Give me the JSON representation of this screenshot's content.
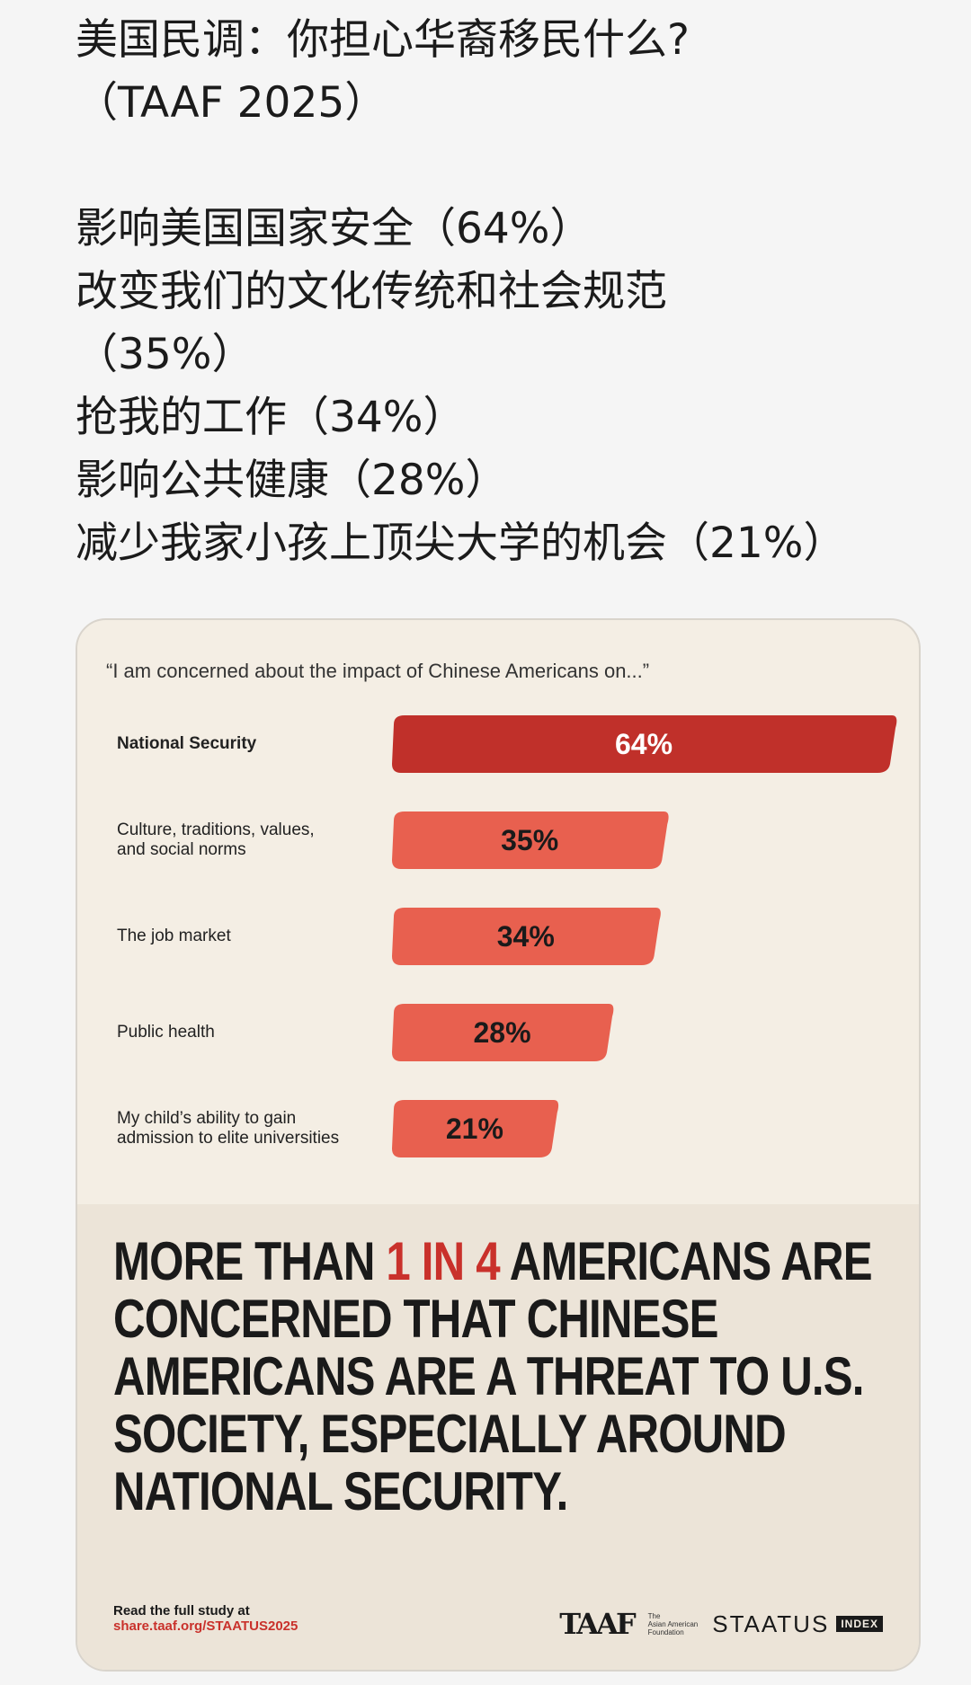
{
  "post": {
    "lines": [
      "美国民调：你担心华裔移民什么?",
      "（TAAF 2025）",
      "",
      "影响美国国家安全（64%）",
      "改变我们的文化传统和社会规范",
      "（35%）",
      "抢我的工作（34%）",
      "影响公共健康（28%）",
      "减少我家小孩上顶尖大学的机会（21%）"
    ]
  },
  "card": {
    "quote": "“I am concerned about the impact of Chinese Americans on...”",
    "headline_pre": "MORE THAN ",
    "headline_highlight": "1 IN 4",
    "headline_post": " AMERICANS ARE CONCERNED THAT CHINESE AMERICANS ARE A THREAT TO U.S. SOCIETY, ESPECIALLY AROUND NATIONAL SECURITY.",
    "footer_line1": "Read the full study at",
    "footer_url": "share.taaf.org/STAATUS2025",
    "taaf_mark": "TAAF",
    "taaf_name_1": "The",
    "taaf_name_2": "Asian American",
    "taaf_name_3": "Foundation",
    "staatus": "STAATUS",
    "index": "INDEX"
  },
  "colors": {
    "highlight_bar": "#c0302a",
    "bar": "#e8604f",
    "accent_text": "#c9312b"
  },
  "chart_data": {
    "type": "bar",
    "orientation": "horizontal",
    "title": "“I am concerned about the impact of Chinese Americans on...”",
    "categories": [
      "National Security",
      "Culture, traditions, values, and social norms",
      "The job market",
      "Public health",
      "My child's ability to gain admission to elite universities"
    ],
    "category_lines": [
      [
        "National Security"
      ],
      [
        "Culture, traditions, values,",
        "and social norms"
      ],
      [
        "The job market"
      ],
      [
        "Public health"
      ],
      [
        "My child’s ability to gain",
        "admission to elite universities"
      ]
    ],
    "values": [
      64,
      35,
      34,
      28,
      21
    ],
    "value_labels": [
      "64%",
      "35%",
      "34%",
      "28%",
      "21%"
    ],
    "unit": "%",
    "xlim": [
      0,
      64
    ],
    "highlight_index": 0,
    "grid": false,
    "legend": "none"
  }
}
